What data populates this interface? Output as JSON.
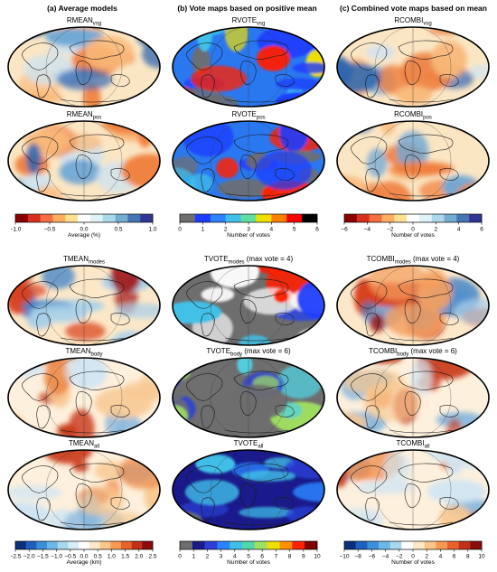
{
  "columns": [
    {
      "title": "(a) Average models"
    },
    {
      "title": "(b) Vote maps based on positive mean"
    },
    {
      "title": "(c) Combined vote maps based on mean"
    }
  ],
  "rows": [
    {
      "maps": [
        {
          "label_main": "RMEAN",
          "label_sub": "vsg",
          "label_tail": "",
          "scheme": "div"
        },
        {
          "label_main": "RVOTE",
          "label_sub": "vsg",
          "label_tail": "",
          "scheme": "vote"
        },
        {
          "label_main": "RCOMBI",
          "label_sub": "vsg",
          "label_tail": "",
          "scheme": "div"
        }
      ]
    },
    {
      "maps": [
        {
          "label_main": "RMEAN",
          "label_sub": "pos",
          "label_tail": "",
          "scheme": "div"
        },
        {
          "label_main": "RVOTE",
          "label_sub": "pos",
          "label_tail": "",
          "scheme": "vote"
        },
        {
          "label_main": "RCOMBI",
          "label_sub": "pos",
          "label_tail": "",
          "scheme": "div"
        }
      ]
    },
    {
      "maps": [
        {
          "label_main": "TMEAN",
          "label_sub": "modes",
          "label_tail": "",
          "scheme": "div2"
        },
        {
          "label_main": "TVOTE",
          "label_sub": "modes",
          "label_tail": " (max vote = 4)",
          "scheme": "vote2"
        },
        {
          "label_main": "TCOMBI",
          "label_sub": "modes",
          "label_tail": " (max vote = 4)",
          "scheme": "div2"
        }
      ]
    },
    {
      "maps": [
        {
          "label_main": "TMEAN",
          "label_sub": "body",
          "label_tail": "",
          "scheme": "div3"
        },
        {
          "label_main": "TVOTE",
          "label_sub": "body",
          "label_tail": " (max vote = 6)",
          "scheme": "vote3"
        },
        {
          "label_main": "TCOMBI",
          "label_sub": "body",
          "label_tail": " (max vote = 6)",
          "scheme": "div3"
        }
      ]
    },
    {
      "maps": [
        {
          "label_main": "TMEAN",
          "label_sub": "all",
          "label_tail": "",
          "scheme": "div3"
        },
        {
          "label_main": "TVOTE",
          "label_sub": "all",
          "label_tail": "",
          "scheme": "vote4"
        },
        {
          "label_main": "TCOMBI",
          "label_sub": "all",
          "label_tail": "",
          "scheme": "div3"
        }
      ]
    }
  ],
  "colorbars": [
    {
      "group": "top",
      "col": 0,
      "colors": [
        "#8b0000",
        "#d7301f",
        "#f46d43",
        "#fdae61",
        "#fee090",
        "#ffffff",
        "#e0f3f8",
        "#abd9e9",
        "#74add1",
        "#4575b4",
        "#313695"
      ],
      "ticks": [
        "−1.0",
        "−0.5",
        "0.0",
        "0.5",
        "1.0"
      ],
      "title": "Average (%)"
    },
    {
      "group": "top",
      "col": 1,
      "colors": [
        "#6e6e6e",
        "#1e3cff",
        "#2a82ff",
        "#40c0e8",
        "#60e0a0",
        "#f0e000",
        "#ff8000",
        "#ff0000",
        "#000000"
      ],
      "ticks": [
        "0",
        "1",
        "2",
        "3",
        "4",
        "5",
        "6"
      ],
      "title": "Number of votes"
    },
    {
      "group": "top",
      "col": 2,
      "colors": [
        "#8b0000",
        "#d7301f",
        "#f46d43",
        "#fdae61",
        "#fee090",
        "#ffffff",
        "#e0f3f8",
        "#abd9e9",
        "#74add1",
        "#4575b4",
        "#313695"
      ],
      "ticks": [
        "−6",
        "−4",
        "−2",
        "0",
        "2",
        "4",
        "6"
      ],
      "title": "Number of votes"
    },
    {
      "group": "bottom",
      "col": 0,
      "colors": [
        "#0b2f7a",
        "#1f5fbf",
        "#3a8fd9",
        "#6cb8e8",
        "#a6d8f0",
        "#d6ecf6",
        "#ffffff",
        "#fde8c8",
        "#fdc58a",
        "#f89a52",
        "#e8622a",
        "#c3301a",
        "#8b0c0c"
      ],
      "ticks": [
        "−2.5",
        "−2.0",
        "−1.5",
        "−1.0",
        "−0.5",
        "0.0",
        "0.5",
        "1.0",
        "1.5",
        "2.0",
        "2.5"
      ],
      "title": "Average (km)"
    },
    {
      "group": "bottom",
      "col": 1,
      "colors": [
        "#6e6e6e",
        "#1a1a8c",
        "#2a40d8",
        "#2a82ff",
        "#40c0e8",
        "#50d8a8",
        "#a0e060",
        "#f0e000",
        "#ff9000",
        "#ff2000",
        "#800000"
      ],
      "ticks": [
        "0",
        "1",
        "2",
        "3",
        "4",
        "5",
        "6",
        "7",
        "8",
        "9",
        "10"
      ],
      "title": "Number of votes"
    },
    {
      "group": "bottom",
      "col": 2,
      "colors": [
        "#0b2f7a",
        "#1f5fbf",
        "#3a8fd9",
        "#6cb8e8",
        "#a6d8f0",
        "#ffffff",
        "#fde8c8",
        "#fdc58a",
        "#f89a52",
        "#e8622a",
        "#c3301a",
        "#8b0c0c"
      ],
      "ticks": [
        "−10",
        "−8",
        "−6",
        "−4",
        "−2",
        "0",
        "2",
        "4",
        "6",
        "8",
        "10"
      ],
      "title": "Number of votes"
    }
  ]
}
